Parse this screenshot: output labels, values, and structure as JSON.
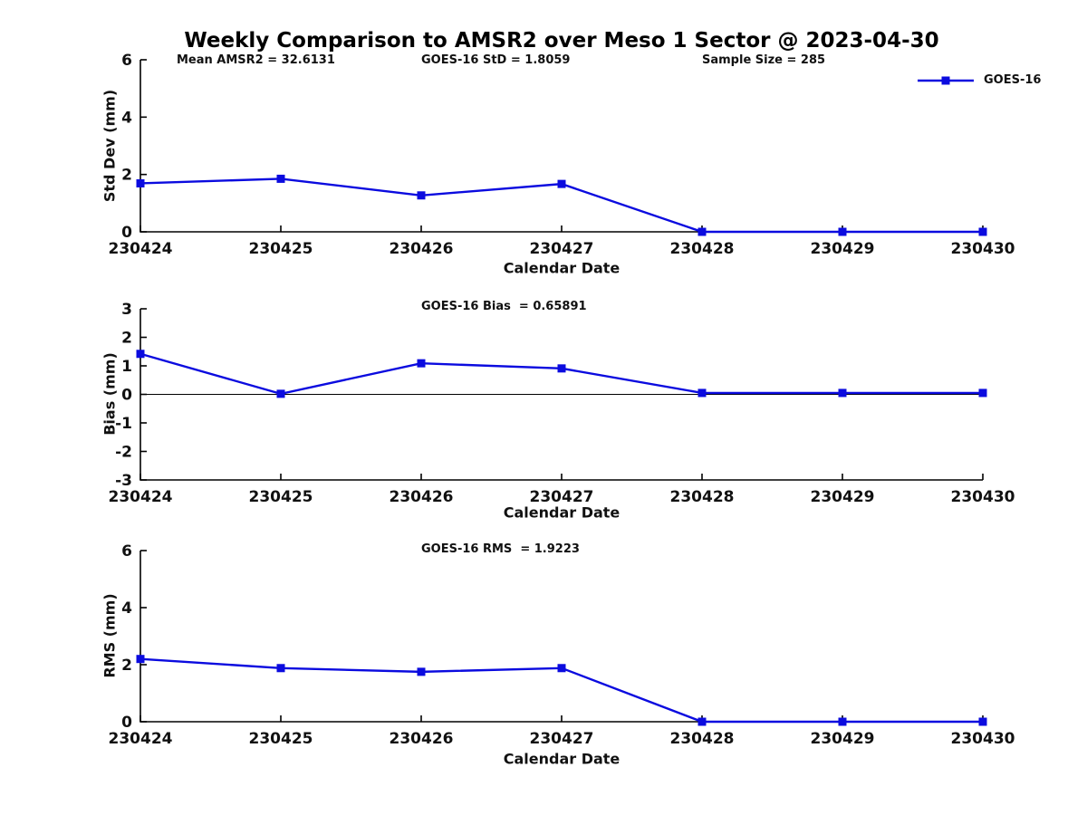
{
  "title": "Weekly Comparison to AMSR2 over Meso 1 Sector @ 2023-04-30",
  "legend": {
    "label": "GOES-16"
  },
  "colors": {
    "line": "#0b0bdf",
    "axis": "#000000",
    "text": "#111111",
    "background": "#ffffff"
  },
  "chart_data": [
    {
      "type": "line",
      "panel": "std-dev",
      "annotations": [
        "Mean AMSR2 = 32.6131",
        "GOES-16 StD = 1.8059",
        "Sample Size = 285"
      ],
      "categories": [
        "230424",
        "230425",
        "230426",
        "230427",
        "230428",
        "230429",
        "230430"
      ],
      "series": [
        {
          "name": "GOES-16",
          "values": [
            1.69,
            1.85,
            1.27,
            1.67,
            0,
            0,
            0
          ]
        }
      ],
      "xlabel": "Calendar Date",
      "ylabel": "Std Dev (mm)",
      "ylim": [
        0,
        6
      ],
      "yticks": [
        0,
        2,
        4,
        6
      ],
      "grid": false,
      "zero_line": false,
      "legend_position": "top-right-outside"
    },
    {
      "type": "line",
      "panel": "bias",
      "subtitle": "GOES-16 Bias  = 0.65891",
      "categories": [
        "230424",
        "230425",
        "230426",
        "230427",
        "230428",
        "230429",
        "230430"
      ],
      "series": [
        {
          "name": "GOES-16",
          "values": [
            1.42,
            0.02,
            1.09,
            0.91,
            0.05,
            0.05,
            0.05
          ]
        }
      ],
      "xlabel": "Calendar Date",
      "ylabel": "Bias (mm)",
      "ylim": [
        -3,
        3
      ],
      "yticks": [
        -3,
        -2,
        -1,
        0,
        1,
        2,
        3
      ],
      "grid": false,
      "zero_line": true
    },
    {
      "type": "line",
      "panel": "rms",
      "subtitle": "GOES-16 RMS  = 1.9223",
      "categories": [
        "230424",
        "230425",
        "230426",
        "230427",
        "230428",
        "230429",
        "230430"
      ],
      "series": [
        {
          "name": "GOES-16",
          "values": [
            2.2,
            1.88,
            1.75,
            1.88,
            0,
            0,
            0
          ]
        }
      ],
      "xlabel": "Calendar Date",
      "ylabel": "RMS (mm)",
      "ylim": [
        0,
        6
      ],
      "yticks": [
        0,
        2,
        4,
        6
      ],
      "grid": false,
      "zero_line": false
    }
  ]
}
